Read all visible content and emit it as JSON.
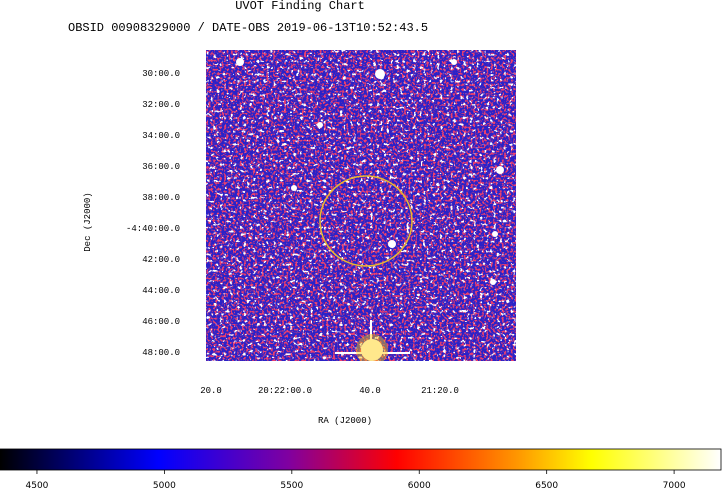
{
  "chart_data": {
    "type": "image",
    "title": "UVOT Finding Chart",
    "subtitle": "OBSID 00908329000 / DATE-OBS 2019-06-13T10:52:43.5",
    "xlabel": "RA (J2000)",
    "ylabel": "Dec (J2000)",
    "xtick_labels": [
      "20.0",
      "20:22:00.0",
      "40.0",
      "21:20.0"
    ],
    "ytick_labels": [
      "30:00.0",
      "32:00.0",
      "34:00.0",
      "36:00.0",
      "38:00.0",
      "-4:40:00.0",
      "42:00.0",
      "44:00.0",
      "46:00.0",
      "48:00.0"
    ],
    "colorbar": {
      "lim": [
        4355,
        7184
      ],
      "ticks": [
        4500,
        5000,
        5500,
        6000,
        6500,
        7000
      ]
    }
  }
}
